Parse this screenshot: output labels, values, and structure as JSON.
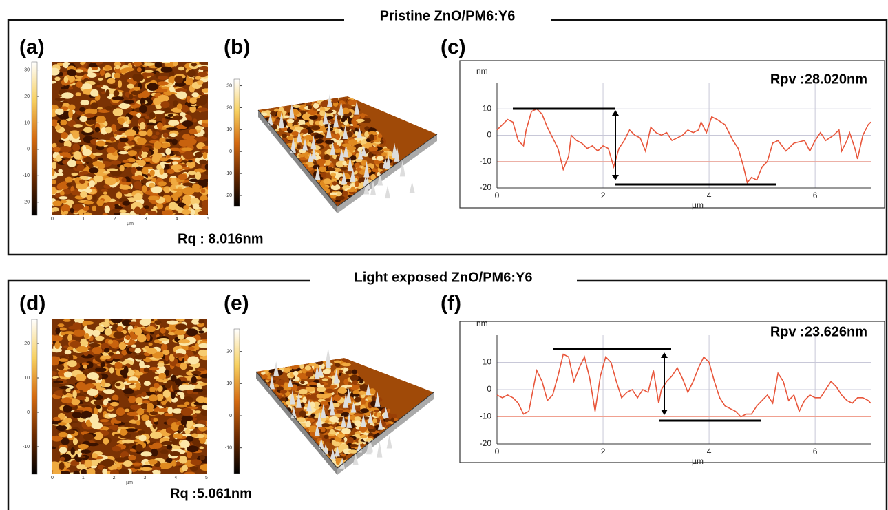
{
  "sections": [
    {
      "title": "Pristine ZnO/PM6:Y6",
      "panels": [
        "(a)",
        "(b)",
        "(c)"
      ],
      "rq": "Rq : 8.016nm",
      "colorbar_lim": [
        -25,
        33
      ],
      "colorbar_ticks": [
        30,
        20,
        10,
        0,
        -10,
        -20
      ]
    },
    {
      "title": "Light exposed ZnO/PM6:Y6",
      "panels": [
        "(d)",
        "(e)",
        "(f)"
      ],
      "rq": "Rq :5.061nm",
      "colorbar_lim": [
        -18,
        27
      ],
      "colorbar_ticks": [
        20,
        10,
        0,
        -10
      ]
    }
  ],
  "image_xticks": [
    0,
    1,
    2,
    3,
    4,
    5
  ],
  "image_xlabel": "µm",
  "chart_data": [
    {
      "type": "line",
      "ylabel": "nm",
      "xlabel": "µm",
      "annotation": "Rpv :28.020nm",
      "color": "#e8553a",
      "grid": true,
      "xlim": [
        0,
        7.05
      ],
      "ylim": [
        -20,
        20
      ],
      "xticks": [
        0,
        2,
        4,
        6
      ],
      "yticks": [
        -20,
        -10,
        0,
        10
      ],
      "x": [
        0,
        0.1,
        0.2,
        0.3,
        0.4,
        0.5,
        0.55,
        0.65,
        0.75,
        0.85,
        0.95,
        1.05,
        1.15,
        1.25,
        1.35,
        1.4,
        1.5,
        1.6,
        1.7,
        1.8,
        1.9,
        2.0,
        2.1,
        2.2,
        2.3,
        2.4,
        2.5,
        2.6,
        2.7,
        2.8,
        2.9,
        3.0,
        3.1,
        3.2,
        3.3,
        3.4,
        3.5,
        3.6,
        3.7,
        3.8,
        3.85,
        3.95,
        4.05,
        4.15,
        4.3,
        4.45,
        4.55,
        4.65,
        4.72,
        4.8,
        4.9,
        5.0,
        5.1,
        5.2,
        5.3,
        5.45,
        5.6,
        5.8,
        5.9,
        6.0,
        6.1,
        6.2,
        6.35,
        6.45,
        6.5,
        6.6,
        6.65,
        6.75,
        6.8,
        6.9,
        7.0,
        7.05
      ],
      "values": [
        2,
        4,
        6,
        5,
        -2,
        -4,
        2,
        9,
        10,
        8,
        3,
        -1,
        -5,
        -13,
        -8,
        0,
        -2,
        -3,
        -5,
        -4,
        -6,
        -4,
        -5,
        -12,
        -5,
        -2,
        2,
        0,
        -1,
        -6,
        3,
        1,
        0,
        1,
        -2,
        -1,
        0,
        2,
        1,
        2,
        5,
        1,
        7,
        6,
        4,
        -2,
        -5,
        -12,
        -18,
        -16,
        -17,
        -12,
        -10,
        -3,
        -2,
        -6,
        -3,
        -2,
        -6,
        -2,
        1,
        -2,
        0,
        2,
        -6,
        -2,
        1,
        -5,
        -9,
        0,
        4,
        5
      ]
    },
    {
      "type": "line",
      "ylabel": "nm",
      "xlabel": "µm",
      "annotation": "Rpv :23.626nm",
      "color": "#e8553a",
      "grid": true,
      "xlim": [
        0,
        7.05
      ],
      "ylim": [
        -20,
        20
      ],
      "xticks": [
        0,
        2,
        4,
        6
      ],
      "yticks": [
        -20,
        -10,
        0,
        10
      ],
      "x": [
        0,
        0.1,
        0.2,
        0.3,
        0.4,
        0.5,
        0.6,
        0.7,
        0.75,
        0.85,
        0.95,
        1.05,
        1.15,
        1.25,
        1.35,
        1.45,
        1.55,
        1.65,
        1.75,
        1.85,
        1.95,
        2.05,
        2.15,
        2.25,
        2.35,
        2.45,
        2.55,
        2.65,
        2.75,
        2.85,
        2.95,
        3.05,
        3.1,
        3.2,
        3.3,
        3.4,
        3.5,
        3.6,
        3.7,
        3.8,
        3.9,
        4.0,
        4.1,
        4.2,
        4.3,
        4.4,
        4.5,
        4.6,
        4.7,
        4.8,
        4.9,
        5.0,
        5.1,
        5.2,
        5.3,
        5.4,
        5.5,
        5.6,
        5.7,
        5.8,
        5.9,
        6.0,
        6.1,
        6.2,
        6.3,
        6.4,
        6.5,
        6.6,
        6.7,
        6.8,
        6.9,
        7.0,
        7.05
      ],
      "values": [
        -2,
        -3,
        -2,
        -3,
        -5,
        -9,
        -8,
        2,
        7,
        3,
        -4,
        -2,
        5,
        13,
        12,
        3,
        8,
        12,
        4,
        -8,
        5,
        12,
        10,
        3,
        -3,
        -1,
        0,
        -3,
        0,
        -1,
        7,
        -5,
        0,
        3,
        5,
        8,
        4,
        -1,
        3,
        8,
        12,
        10,
        3,
        -3,
        -6,
        -7,
        -8,
        -10,
        -9,
        -9,
        -6,
        -4,
        -2,
        -5,
        6,
        3,
        -4,
        -2,
        -8,
        -4,
        -2,
        -3,
        -3,
        0,
        3,
        1,
        -2,
        -4,
        -5,
        -3,
        -3,
        -4,
        -5
      ]
    }
  ]
}
